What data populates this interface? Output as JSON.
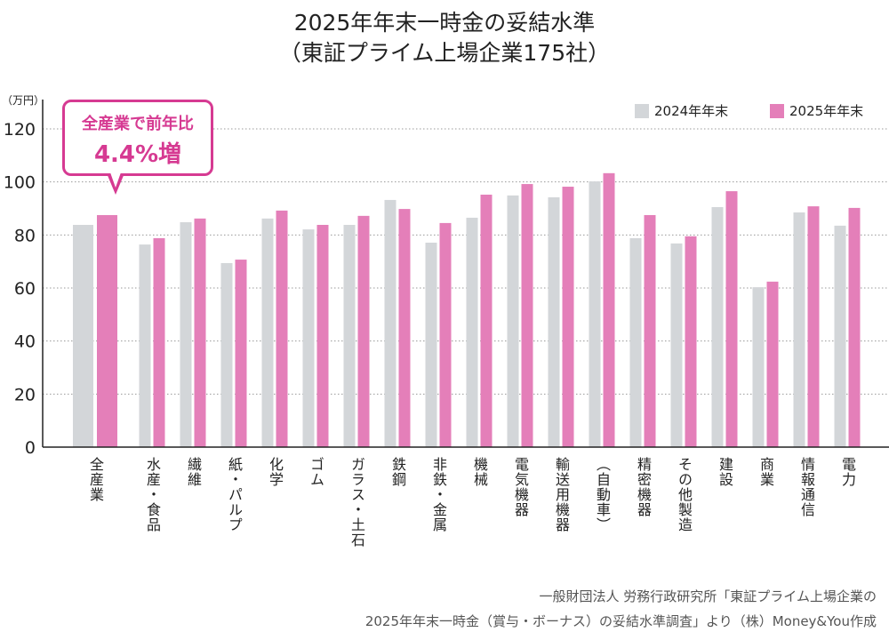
{
  "chart_data": {
    "type": "bar",
    "title_line1": "2025年年末一時金の妥結水準",
    "title_line2": "（東証プライム上場企業175社）",
    "ylabel": "（万円）",
    "ylim": [
      0,
      120
    ],
    "yticks": [
      0,
      20,
      40,
      60,
      80,
      100,
      120
    ],
    "grid": true,
    "legend_position": "top-right",
    "categories": [
      "全産業",
      "水産・食品",
      "繊維",
      "紙・パルプ",
      "化学",
      "ゴム",
      "ガラス・土石",
      "鉄鋼",
      "非鉄・金属",
      "機械",
      "電気機器",
      "輸送用機器",
      "（自動車）",
      "精密機器",
      "その他製造",
      "建設",
      "商業",
      "情報通信",
      "電力"
    ],
    "series": [
      {
        "name": "2024年年末",
        "color": "#d3d6d9",
        "values": [
          83.8,
          76.4,
          84.8,
          69.4,
          86.2,
          82.1,
          83.8,
          93.2,
          77.1,
          86.5,
          94.9,
          94.2,
          100.2,
          78.8,
          76.8,
          90.5,
          60.3,
          88.5,
          83.5
        ]
      },
      {
        "name": "2025年年末",
        "color": "#e47fb9",
        "values": [
          87.5,
          78.8,
          86.2,
          70.7,
          89.2,
          83.8,
          87.2,
          89.8,
          84.5,
          95.2,
          99.2,
          98.2,
          103.3,
          87.5,
          79.5,
          96.5,
          62.4,
          90.8,
          90.2
        ]
      }
    ],
    "annotation": {
      "line1": "全産業で前年比",
      "line2": "4.4%増",
      "color": "#d63a92"
    }
  },
  "source": {
    "line1": "一般財団法人 労務行政研究所「東証プライム上場企業の",
    "line2": "2025年年末一時金（賞与・ボーナス）の妥結水準調査」より（株）Money&You作成"
  }
}
